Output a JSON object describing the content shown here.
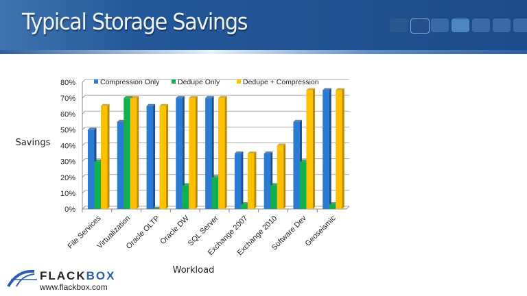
{
  "slide": {
    "title": "Typical Storage Savings"
  },
  "logo": {
    "name_part1": "FLACK",
    "name_part2": "BOX",
    "url": "www.flackbox.com"
  },
  "chart_data": {
    "type": "bar",
    "title": "",
    "xlabel": "Workload",
    "ylabel": "Savings",
    "ylim": [
      0,
      80
    ],
    "yticks": [
      "0%",
      "10%",
      "20%",
      "30%",
      "40%",
      "50%",
      "60%",
      "70%",
      "80%"
    ],
    "categories": [
      "File Services",
      "Virtualization",
      "Oracle OLTP",
      "Oracle DW",
      "SQL Server",
      "Exchange 2007",
      "Exchange 2010",
      "Software Dev",
      "Geoseismic"
    ],
    "series": [
      {
        "name": "Compression Only",
        "color": "#2a7bd4",
        "values": [
          50,
          55,
          65,
          70,
          70,
          35,
          35,
          55,
          75
        ]
      },
      {
        "name": "Dedupe Only",
        "color": "#0fb050",
        "values": [
          30,
          70,
          0,
          15,
          20,
          3,
          15,
          30,
          3
        ]
      },
      {
        "name": "Dedupe + Compression",
        "color": "#ffc000",
        "values": [
          65,
          70,
          65,
          70,
          70,
          35,
          40,
          75,
          75
        ]
      }
    ],
    "legend": "top",
    "grid": true
  }
}
